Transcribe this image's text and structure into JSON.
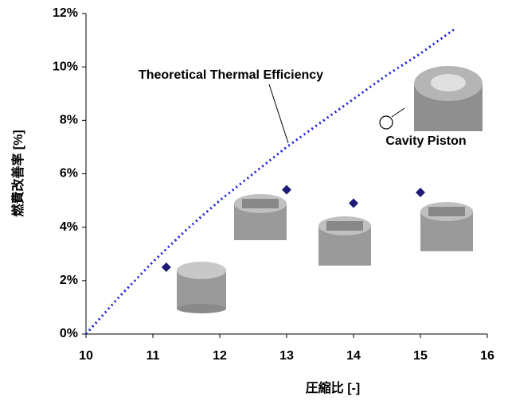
{
  "chart_data": {
    "type": "line",
    "x_label": "圧縮比 [-]",
    "y_label": "燃費改善率 [%]",
    "xlim": [
      10,
      16
    ],
    "xticks": [
      10,
      11,
      12,
      13,
      14,
      15,
      16
    ],
    "ylim": [
      0,
      12
    ],
    "yticks": [
      {
        "value": 0,
        "label": "0%"
      },
      {
        "value": 2,
        "label": "2%"
      },
      {
        "value": 4,
        "label": "4%"
      },
      {
        "value": 6,
        "label": "6%"
      },
      {
        "value": 8,
        "label": "8%"
      },
      {
        "value": 10,
        "label": "10%"
      },
      {
        "value": 12,
        "label": "12%"
      }
    ],
    "series": [
      {
        "name": "Theoretical Thermal Efficiency",
        "type": "line",
        "color": "#1a1adc",
        "x": [
          10,
          10.5,
          11,
          11.5,
          12,
          12.5,
          13,
          13.5,
          14,
          14.5,
          15,
          15.5
        ],
        "values": [
          0,
          1.4,
          2.7,
          3.9,
          5.0,
          6.0,
          7.0,
          7.9,
          8.8,
          9.7,
          10.5,
          11.4
        ]
      },
      {
        "name": "Cavity Piston",
        "type": "scatter",
        "color": "#1c1c78",
        "x": [
          11.2,
          13,
          14,
          15
        ],
        "values": [
          2.5,
          5.4,
          4.9,
          5.3
        ]
      }
    ]
  }
}
